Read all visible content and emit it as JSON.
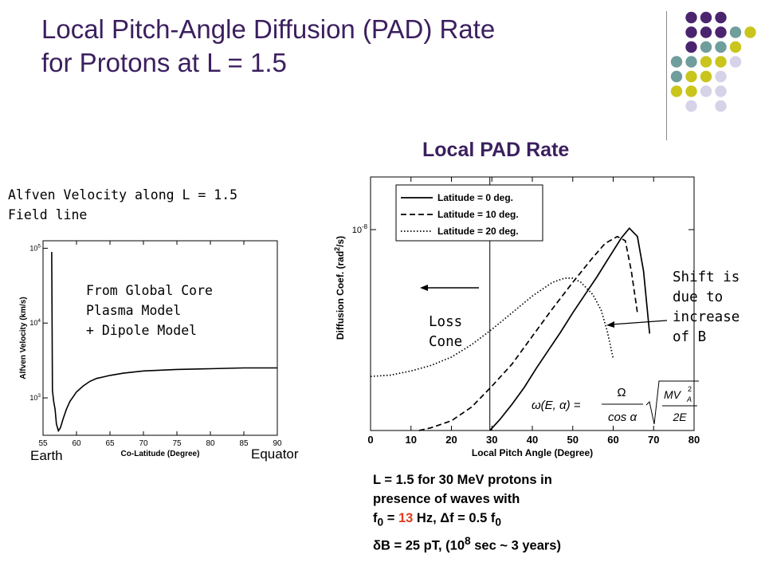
{
  "slide": {
    "title_line1": "Local Pitch-Angle Diffusion (PAD) Rate",
    "title_line2": "for Protons at L = 1.5",
    "subtitle": "Local PAD Rate",
    "alfven_caption_line1": "Alfven Velocity along L = 1.5",
    "alfven_caption_line2": "Field line",
    "model_note_line1": "From Global Core",
    "model_note_line2": "Plasma Model",
    "model_note_line3": "+ Dipole Model",
    "earth_label": "Earth",
    "equator_label": "Equator",
    "loss_cone_line1": "Loss",
    "loss_cone_line2": "Cone",
    "shift_line1": "Shift is",
    "shift_line2": "due to",
    "shift_line3": "increase",
    "shift_line4": "of B",
    "params_line1": "L = 1.5 for 30 MeV protons in",
    "params_line2": "presence of waves with",
    "params_f0_sym": "f",
    "params_f0_sub": "0",
    "params_f0_eq": " = ",
    "params_f0_val": "13",
    "params_f0_rest": " Hz, Δf = 0.5 f",
    "params_f0_sub2": "0",
    "params_line4_a": "δB = 25 pT,  (10",
    "params_line4_sup": "8",
    "params_line4_b": " sec ~ 3 years)",
    "colors": {
      "title": "#3b1f5e",
      "highlight": "#e23a1d",
      "purple": "#4b2470",
      "teal": "#6f9e9c",
      "olive": "#c9c51c",
      "lavender": "#d6d3e8"
    }
  },
  "chart_data": [
    {
      "type": "line",
      "xlabel": "Co-Latitude (Degree)",
      "ylabel": "Alfven Velocity (km/s)",
      "xlim": [
        55,
        90
      ],
      "ylim_log10": [
        2.5,
        5.1
      ],
      "x_ticks": [
        "55",
        "60",
        "65",
        "70",
        "75",
        "80",
        "85",
        "90"
      ],
      "y_ticks": [
        "10^3",
        "10^4",
        "10^5"
      ],
      "series": [
        {
          "x": [
            56.3,
            56.4,
            56.6,
            56.8,
            57.0,
            57.3,
            57.6,
            58.0,
            58.5,
            59.0,
            60,
            61,
            62,
            63,
            65,
            67,
            70,
            75,
            80,
            85,
            90
          ],
          "log10_y": [
            4.95,
            3.1,
            2.95,
            2.85,
            2.65,
            2.56,
            2.6,
            2.72,
            2.85,
            2.95,
            3.08,
            3.16,
            3.22,
            3.26,
            3.3,
            3.33,
            3.36,
            3.38,
            3.39,
            3.4,
            3.4
          ]
        }
      ]
    },
    {
      "type": "line",
      "xlabel": "Local Pitch Angle (Degree)",
      "ylabel": "Diffusion Coef. (rad^2/s)",
      "xlim": [
        0,
        80
      ],
      "ylim_log10": [
        -9.45,
        -7.62
      ],
      "x_ticks": [
        "0",
        "10",
        "20",
        "30",
        "40",
        "50",
        "60",
        "70",
        "80"
      ],
      "y_ticks": [
        "10^-8"
      ],
      "loss_cone_x": 29.5,
      "formula": "ω(E,α) = Ω / cos α · √(M V_A² / 2E)",
      "series": [
        {
          "name": "Latitude = 0 deg.",
          "dash": "solid",
          "x": [
            29.5,
            32,
            35,
            38,
            41,
            44,
            47,
            50,
            53,
            56,
            59,
            62,
            64,
            66,
            67.5,
            69
          ],
          "log10_y": [
            -9.45,
            -9.37,
            -9.26,
            -9.14,
            -9.0,
            -8.87,
            -8.74,
            -8.6,
            -8.47,
            -8.34,
            -8.2,
            -8.06,
            -7.99,
            -8.05,
            -8.3,
            -8.75
          ]
        },
        {
          "name": "Latitude = 10 deg.",
          "dash": "dashed",
          "x": [
            12,
            15,
            20,
            25,
            30,
            35,
            40,
            45,
            50,
            55,
            58,
            61,
            63,
            64.5,
            66
          ],
          "log10_y": [
            -9.45,
            -9.43,
            -9.38,
            -9.28,
            -9.13,
            -8.97,
            -8.77,
            -8.57,
            -8.38,
            -8.2,
            -8.1,
            -8.05,
            -8.08,
            -8.3,
            -8.6
          ]
        },
        {
          "name": "Latitude = 20 deg.",
          "dash": "dotted",
          "x": [
            0,
            5,
            10,
            15,
            20,
            25,
            30,
            35,
            40,
            45,
            48,
            50,
            52,
            55,
            57,
            58.5,
            60
          ],
          "log10_y": [
            -9.06,
            -9.05,
            -9.02,
            -8.98,
            -8.92,
            -8.83,
            -8.72,
            -8.6,
            -8.48,
            -8.38,
            -8.35,
            -8.35,
            -8.38,
            -8.47,
            -8.58,
            -8.73,
            -8.93
          ]
        }
      ]
    }
  ]
}
